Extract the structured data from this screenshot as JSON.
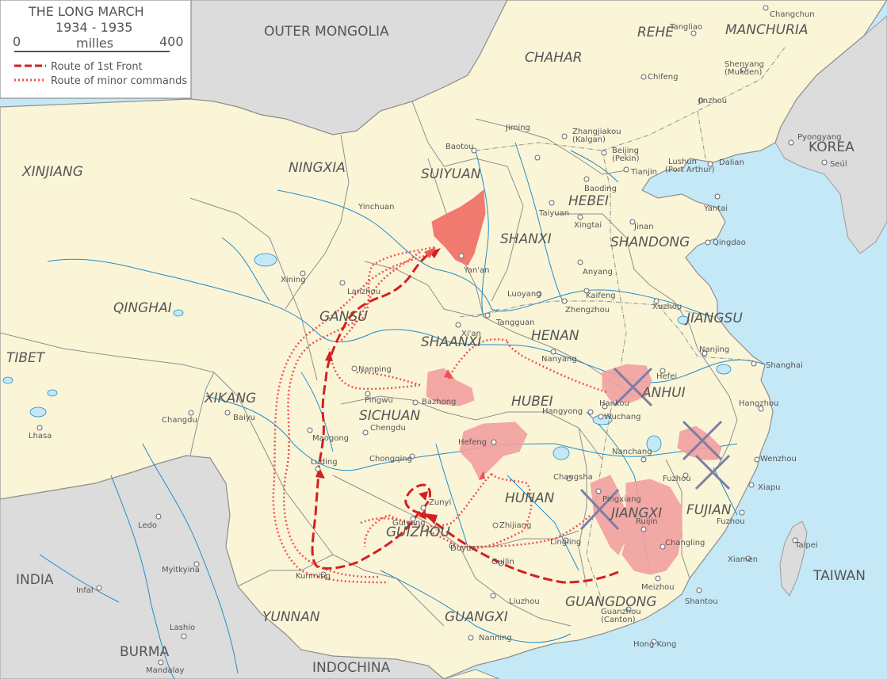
{
  "legend": {
    "title": "THE LONG MARCH",
    "years": "1934 - 1935",
    "scale_min": "0",
    "scale_unit": "milles",
    "scale_max": "400",
    "route_main": "Route of 1st Front",
    "route_minor": "Route of minor commands"
  },
  "colors": {
    "sea": "#c5e8f7",
    "china": "#fbf5d8",
    "foreign": "#dcdcdc",
    "river": "#1f8dc7",
    "route": "#d42020",
    "soviet_area": "#f2a0a0",
    "destination": "#f07a70",
    "cross": "#7c7ea8"
  },
  "regions": {
    "outer_mongolia": "OUTER MONGOLIA",
    "manchuria": "MANCHURIA",
    "rehe": "REHE",
    "chahar": "CHAHAR",
    "korea": "KOREA",
    "xinjiang": "XINJIANG",
    "ningxia": "NINGXIA",
    "suiyuan": "SUIYUAN",
    "hebei": "HEBEI",
    "shanxi": "SHANXI",
    "shandong": "SHANDONG",
    "qinghai": "QINGHAI",
    "gansu": "GANSU",
    "shaanxi": "SHAANXI",
    "henan": "HENAN",
    "jiangsu": "JIANGSU",
    "tibet": "TIBET",
    "xikang": "XIKANG",
    "sichuan": "SICHUAN",
    "hubei": "HUBEI",
    "anhui": "ANHUI",
    "hunan": "HUNAN",
    "jiangxi": "JIANGXI",
    "fujian": "FUJIAN",
    "guizhou": "GUIZHOU",
    "india": "INDIA",
    "yunnan": "YUNNAN",
    "guangxi": "GUANGXI",
    "guangdong": "GUANGDONG",
    "taiwan": "TAIWAN",
    "burma": "BURMA",
    "indochina": "INDOCHINA"
  },
  "cities": {
    "changchun": "Changchun",
    "tangliao": "Tangliao",
    "chifeng": "Chifeng",
    "shenyang": "Shenyang",
    "mukden": "(Mukden)",
    "jinzhou": "Jinzhou",
    "pyongyang": "Pyongyang",
    "seoul": "Seúl",
    "jiming": "Jiming",
    "zhangjiakou": "Zhangjiakou",
    "kalgan": "(Kalgan)",
    "beijing": "Beijing",
    "pekin": "(Pekin)",
    "lushun": "Lushun",
    "port_arthur": "(Port Arthur)",
    "dalian": "Dalian",
    "tianjin": "Tianjin",
    "baotou": "Baotou",
    "baoding": "Baoding",
    "yinchuan": "Yinchuan",
    "taiyuan": "Taiyuan",
    "xingtai": "Xingtai",
    "jinan": "Jinan",
    "yantai": "Yantai",
    "qingdao": "Qingdao",
    "yanan": "Yan'an",
    "anyang": "Anyang",
    "xining": "Xining",
    "lanzhou": "Lanzhou",
    "luoyang": "Luoyang",
    "kaifeng": "Kaifeng",
    "zhengzhou": "Zhengzhou",
    "xuzhou": "Xuzhou",
    "tangguan": "Tangguan",
    "xian": "Xi'an",
    "nanjing": "Nanjing",
    "nanyang": "Nanyang",
    "hefei": "Hefei",
    "shanghai": "Shanghai",
    "nanping": "Nanping",
    "pingwu": "Pingwu",
    "bazhong": "Bazhong",
    "hankou": "Hankou",
    "hangyong": "Hangyong",
    "wuchang": "Wuchang",
    "hangzhou": "Hangzhou",
    "changdu": "Changdu",
    "baiyu": "Baiyu",
    "chengdu": "Chengdu",
    "hefeng": "Hefeng",
    "lhasa": "Lhasa",
    "maogong": "Maogong",
    "luding": "Luding",
    "chongqing": "Chongqing",
    "nanchang": "Nanchang",
    "wenzhou": "Wenzhou",
    "fuzhou1": "Fuzhou",
    "xiapu": "Xiapu",
    "changsha": "Changsha",
    "pingxiang": "Pingxiang",
    "zunyi": "Zunyi",
    "ruijin": "Ruijin",
    "fuzhou2": "Fuzhou",
    "ledo": "Ledo",
    "guiyang": "Guiyang",
    "duyun": "Duyun",
    "zhijiang": "Zhijiang",
    "lingling": "Lingling",
    "changling": "Changling",
    "taipei": "Taipei",
    "myitkyina": "Myitkyina",
    "kunming": "Kunming",
    "guilin": "Guilin",
    "xiamen": "Xiamen",
    "infal": "Infal",
    "meizhou": "Meizhou",
    "liuzhou": "Liuzhou",
    "shantou": "Shantou",
    "guanzhou": "Guanzhou",
    "canton": "(Canton)",
    "lashio": "Lashio",
    "nanning": "Nanning",
    "hong_kong": "Hong Kong",
    "mandalay": "Mandalay"
  }
}
